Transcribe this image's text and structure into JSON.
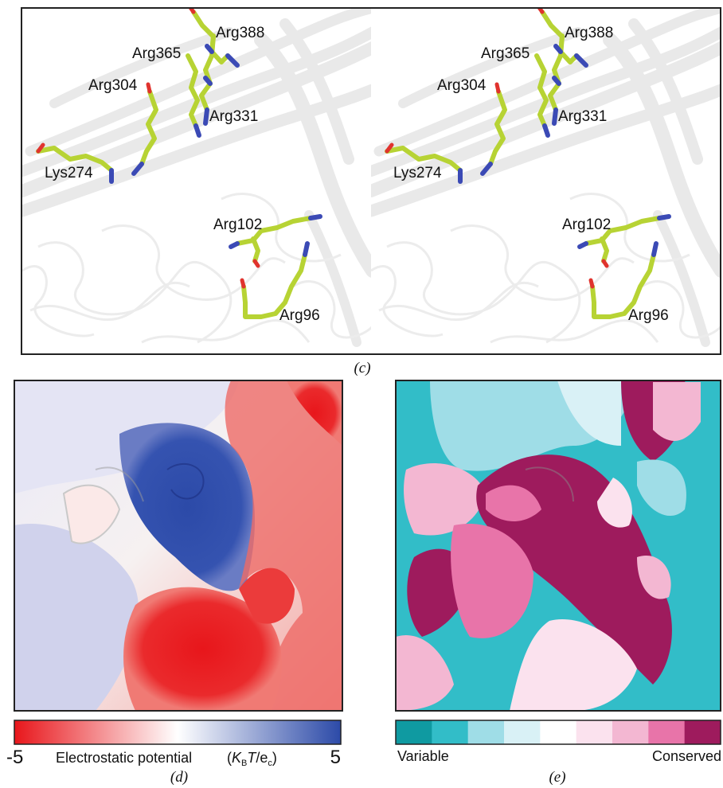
{
  "panel_c": {
    "caption": "(c)",
    "views": [
      {
        "labels": [
          "Arg388",
          "Arg365",
          "Arg304",
          "Arg331",
          "Lys274",
          "Arg102",
          "Arg96"
        ]
      },
      {
        "labels": [
          "Arg388",
          "Arg365",
          "Arg304",
          "Arg331",
          "Lys274",
          "Arg102",
          "Arg96"
        ]
      }
    ]
  },
  "panel_d": {
    "caption": "(d)",
    "colorbar": {
      "min": -5,
      "max": 5,
      "label": "Electrostatic potential",
      "unit": [
        {
          "text": "(",
          "style": "normal"
        },
        {
          "text": "K",
          "style": "italic"
        },
        {
          "text": "B",
          "style": "sub"
        },
        {
          "text": "T",
          "style": "italic"
        },
        {
          "text": "/e",
          "style": "normal"
        },
        {
          "text": "c",
          "style": "sub"
        },
        {
          "text": ")",
          "style": "normal"
        }
      ],
      "colors": [
        "#e8161b",
        "#ffffff",
        "#2c4aa8"
      ]
    }
  },
  "panel_e": {
    "caption": "(e)",
    "colorbar": {
      "low_label": "Variable",
      "high_label": "Conserved",
      "colors": [
        "#0f9aa1",
        "#32bdc8",
        "#9fdde7",
        "#d9f1f6",
        "#ffffff",
        "#fbe2ee",
        "#f3b7d2",
        "#e874a9",
        "#9e1b5d"
      ]
    }
  }
}
